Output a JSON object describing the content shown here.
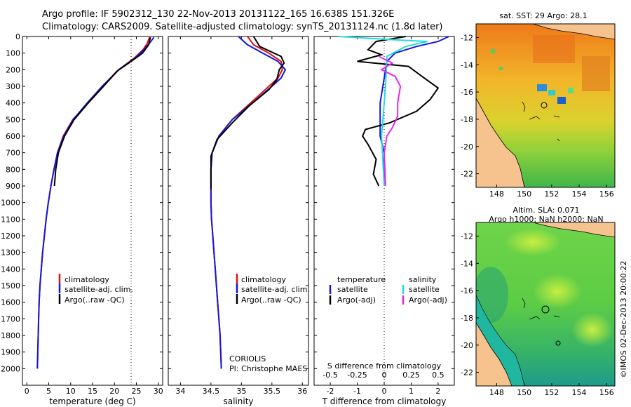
{
  "header": {
    "line1": "Argo profile: IF 5902312_130 22-Nov-2013 20131122_165 16.638S 151.326E",
    "line2": "Climatology: CARS2009. Satellite-adjusted climatology: synTS_20131124.nc (1.8d later)"
  },
  "colors": {
    "clim": "#dd1111",
    "sat": "#1515dd",
    "argo": "#000000",
    "sat_sal": "#22dddd",
    "argo_sal": "#ee22ee"
  },
  "chart_data": [
    {
      "type": "line",
      "id": "temperature",
      "xlabel": "temperature (deg C)",
      "ylabel": "",
      "xlim": [
        -1,
        31
      ],
      "ylim": [
        2100,
        0
      ],
      "xticks": [
        0,
        5,
        10,
        15,
        20,
        25,
        30
      ],
      "yticks": [
        0,
        100,
        200,
        300,
        400,
        500,
        600,
        700,
        800,
        900,
        1000,
        1100,
        1200,
        1300,
        1400,
        1500,
        1600,
        1700,
        1800,
        1900,
        2000
      ],
      "reference_line_x": 23.8,
      "legend": [
        "climatology",
        "satellite-adj. clim.",
        "Argo(..raw -QC)"
      ],
      "series": [
        {
          "name": "climatology",
          "color": "clim",
          "points": [
            [
              28.0,
              5
            ],
            [
              27.5,
              40
            ],
            [
              26.5,
              80
            ],
            [
              24.5,
              130
            ],
            [
              21,
              200
            ],
            [
              17.5,
              300
            ],
            [
              14,
              400
            ],
            [
              10.5,
              500
            ],
            [
              8.3,
              600
            ],
            [
              7.0,
              700
            ],
            [
              6.2,
              800
            ],
            [
              5.5,
              900
            ],
            [
              4.9,
              1000
            ],
            [
              4.4,
              1100
            ],
            [
              4.0,
              1200
            ],
            [
              3.6,
              1300
            ],
            [
              3.3,
              1400
            ],
            [
              3.0,
              1500
            ],
            [
              2.8,
              1600
            ],
            [
              2.7,
              1700
            ],
            [
              2.6,
              1800
            ],
            [
              2.5,
              1900
            ],
            [
              2.4,
              2000
            ]
          ]
        },
        {
          "name": "satellite-adj. clim.",
          "color": "sat",
          "points": [
            [
              29.0,
              5
            ],
            [
              28.0,
              40
            ],
            [
              26.7,
              80
            ],
            [
              24.7,
              130
            ],
            [
              21,
              200
            ],
            [
              17.2,
              300
            ],
            [
              13.8,
              400
            ],
            [
              10.6,
              500
            ],
            [
              8.4,
              600
            ],
            [
              7.0,
              700
            ],
            [
              6.2,
              800
            ],
            [
              5.5,
              900
            ],
            [
              4.9,
              1000
            ],
            [
              4.4,
              1100
            ],
            [
              4.0,
              1200
            ],
            [
              3.6,
              1300
            ],
            [
              3.3,
              1400
            ],
            [
              3.0,
              1500
            ],
            [
              2.8,
              1600
            ],
            [
              2.7,
              1700
            ],
            [
              2.6,
              1800
            ],
            [
              2.5,
              1900
            ],
            [
              2.4,
              2000
            ]
          ]
        },
        {
          "name": "Argo",
          "color": "argo",
          "points": [
            [
              28.2,
              5
            ],
            [
              27.8,
              50
            ],
            [
              26.4,
              100
            ],
            [
              23.8,
              150
            ],
            [
              20.5,
              210
            ],
            [
              17.5,
              300
            ],
            [
              14.0,
              400
            ],
            [
              10.8,
              500
            ],
            [
              8.6,
              600
            ],
            [
              7.2,
              700
            ],
            [
              6.6,
              800
            ],
            [
              6.3,
              900
            ]
          ]
        }
      ]
    },
    {
      "type": "line",
      "id": "salinity",
      "xlabel": "salinity",
      "ylabel": "",
      "xlim": [
        33.8,
        36.1
      ],
      "ylim": [
        2100,
        0
      ],
      "xticks": [
        34,
        34.5,
        35,
        35.5,
        36
      ],
      "legend": [
        "climatology",
        "satellite-adj. clim.",
        "Argo(..raw -QC)"
      ],
      "annotations": [
        "CORIOLIS",
        "PI: Christophe MAES"
      ],
      "series": [
        {
          "name": "climatology",
          "color": "clim",
          "points": [
            [
              35.1,
              0
            ],
            [
              35.2,
              50
            ],
            [
              35.45,
              100
            ],
            [
              35.65,
              150
            ],
            [
              35.67,
              200
            ],
            [
              35.6,
              250
            ],
            [
              35.45,
              300
            ],
            [
              35.15,
              400
            ],
            [
              34.85,
              500
            ],
            [
              34.63,
              600
            ],
            [
              34.52,
              700
            ],
            [
              34.5,
              800
            ],
            [
              34.5,
              900
            ],
            [
              34.5,
              1000
            ],
            [
              34.51,
              1100
            ],
            [
              34.53,
              1200
            ],
            [
              34.55,
              1300
            ],
            [
              34.57,
              1400
            ],
            [
              34.59,
              1500
            ],
            [
              34.61,
              1600
            ],
            [
              34.63,
              1700
            ],
            [
              34.65,
              1800
            ],
            [
              34.66,
              1900
            ],
            [
              34.67,
              2000
            ]
          ]
        },
        {
          "name": "satellite-adj. clim.",
          "color": "sat",
          "points": [
            [
              34.95,
              0
            ],
            [
              35.1,
              50
            ],
            [
              35.35,
              100
            ],
            [
              35.6,
              150
            ],
            [
              35.72,
              200
            ],
            [
              35.65,
              250
            ],
            [
              35.5,
              300
            ],
            [
              35.18,
              400
            ],
            [
              34.85,
              500
            ],
            [
              34.63,
              600
            ],
            [
              34.52,
              700
            ],
            [
              34.5,
              800
            ],
            [
              34.5,
              900
            ],
            [
              34.5,
              1000
            ],
            [
              34.51,
              1100
            ],
            [
              34.53,
              1200
            ],
            [
              34.55,
              1300
            ],
            [
              34.57,
              1400
            ],
            [
              34.59,
              1500
            ],
            [
              34.61,
              1600
            ],
            [
              34.63,
              1700
            ],
            [
              34.65,
              1800
            ],
            [
              34.66,
              1900
            ],
            [
              34.67,
              2000
            ]
          ]
        },
        {
          "name": "Argo",
          "color": "argo",
          "points": [
            [
              35.2,
              0
            ],
            [
              35.3,
              60
            ],
            [
              35.65,
              120
            ],
            [
              35.7,
              160
            ],
            [
              35.62,
              200
            ],
            [
              35.58,
              260
            ],
            [
              35.45,
              320
            ],
            [
              35.12,
              420
            ],
            [
              34.85,
              520
            ],
            [
              34.6,
              620
            ],
            [
              34.5,
              720
            ],
            [
              34.5,
              820
            ],
            [
              34.5,
              920
            ]
          ]
        }
      ]
    },
    {
      "type": "line",
      "id": "differences",
      "xlabel": "T difference from climatology",
      "xlabel_top": "S difference from climatology",
      "xlim": [
        -2.6,
        2.6
      ],
      "ylim": [
        2100,
        0
      ],
      "xticks": [
        -2,
        -1,
        0,
        1,
        2
      ],
      "xticks_top_labels": [
        "-0.5",
        "-0.25",
        "0",
        "0.25",
        "0.5"
      ],
      "legend_left_title": "temperature",
      "legend_right_title": "salinity",
      "legend_left": [
        "satellite",
        "Argo(-adj)"
      ],
      "legend_right": [
        "satellite",
        "Argo(-adj)"
      ],
      "series": [
        {
          "name": "T satellite",
          "color": "sat",
          "points": [
            [
              2.4,
              0
            ],
            [
              2.0,
              30
            ],
            [
              1.2,
              60
            ],
            [
              0.4,
              100
            ],
            [
              0.1,
              150
            ],
            [
              0,
              250
            ],
            [
              -0.15,
              400
            ],
            [
              -0.15,
              600
            ],
            [
              0,
              700
            ],
            [
              0,
              900
            ]
          ]
        },
        {
          "name": "T Argo",
          "color": "argo",
          "points": [
            [
              0.8,
              0
            ],
            [
              -0.3,
              30
            ],
            [
              -0.6,
              80
            ],
            [
              -0.1,
              110
            ],
            [
              -1.0,
              150
            ],
            [
              0.9,
              180
            ],
            [
              1.4,
              240
            ],
            [
              2.0,
              310
            ],
            [
              1.7,
              380
            ],
            [
              1.2,
              450
            ],
            [
              0.2,
              520
            ],
            [
              -0.7,
              560
            ],
            [
              -0.8,
              600
            ],
            [
              -0.6,
              650
            ],
            [
              -0.3,
              740
            ],
            [
              -0.4,
              830
            ],
            [
              -0.2,
              900
            ]
          ]
        },
        {
          "name": "S satellite",
          "color": "sat_sal",
          "points": [
            [
              -1.7,
              0
            ],
            [
              0.4,
              20
            ],
            [
              1.6,
              30
            ],
            [
              0.8,
              60
            ],
            [
              0.1,
              120
            ],
            [
              0.05,
              300
            ],
            [
              -0.1,
              600
            ],
            [
              0,
              900
            ]
          ]
        },
        {
          "name": "S Argo",
          "color": "argo_sal",
          "points": [
            [
              -0.2,
              120
            ],
            [
              0.3,
              160
            ],
            [
              -0.1,
              200
            ],
            [
              0.4,
              240
            ],
            [
              0.6,
              300
            ],
            [
              0.5,
              400
            ],
            [
              0.5,
              480
            ],
            [
              0.3,
              550
            ],
            [
              0.1,
              600
            ],
            [
              0,
              700
            ],
            [
              0.05,
              900
            ]
          ]
        }
      ]
    },
    {
      "type": "heatmap",
      "id": "sst_map",
      "title": "sat. SST: 29 Argo: 28.1",
      "xticks": [
        148,
        150,
        152,
        154,
        156
      ],
      "yticks": [
        -12,
        -14,
        -16,
        -18,
        -20,
        -22
      ],
      "xlim": [
        146.5,
        156.6
      ],
      "ylim": [
        -23,
        -11
      ],
      "argo_position": [
        151.3,
        -16.6
      ]
    },
    {
      "type": "heatmap",
      "id": "sla_map",
      "title_line1": "Altim. SLA: 0.071",
      "title_line2": "Argo h1000: NaN h2000: NaN",
      "xticks": [
        148,
        150,
        152,
        154,
        156
      ],
      "yticks": [
        -12,
        -14,
        -16,
        -18,
        -20,
        -22
      ],
      "xlim": [
        146.5,
        156.6
      ],
      "ylim": [
        -23,
        -11
      ],
      "argo_position": [
        151.3,
        -16.6
      ]
    }
  ],
  "footer": {
    "credit": "©IMOS 02-Dec-2013 20:00:22"
  }
}
